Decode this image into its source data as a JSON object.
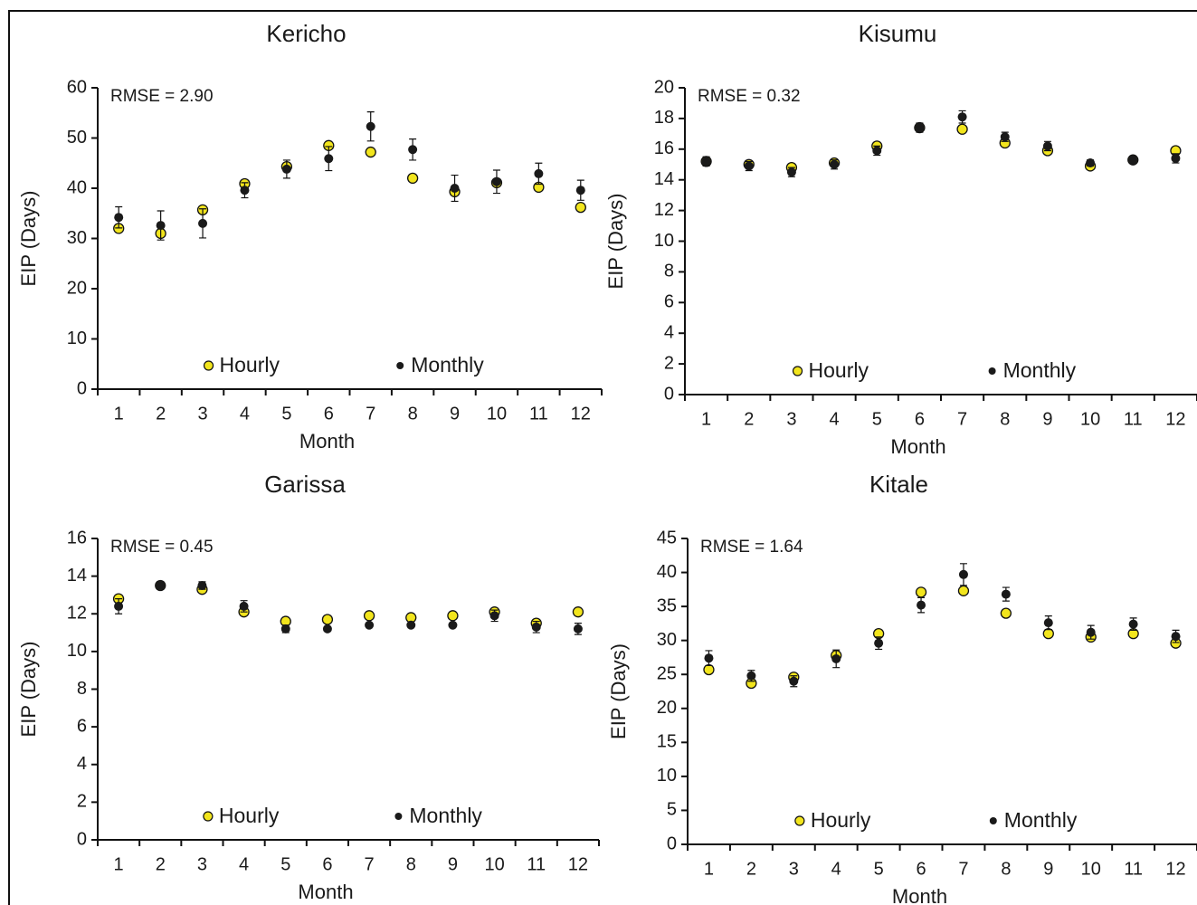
{
  "chart_data": [
    {
      "type": "scatter",
      "title": "Kericho",
      "annotation": "RMSE = 2.90",
      "xlabel": "Month",
      "ylabel": "EIP (Days)",
      "categories": [
        "1",
        "2",
        "3",
        "4",
        "5",
        "6",
        "7",
        "8",
        "9",
        "10",
        "11",
        "12"
      ],
      "series": [
        {
          "name": "Hourly",
          "color": "#f2e51d",
          "values": [
            32,
            31,
            35.7,
            40.9,
            44.3,
            48.5,
            47.2,
            42,
            39.3,
            41.1,
            40.2,
            36.2
          ]
        },
        {
          "name": "Monthly",
          "color": "#1a1a1a",
          "values": [
            34.2,
            32.6,
            33,
            39.6,
            43.8,
            45.9,
            52.3,
            47.7,
            40,
            41.3,
            42.9,
            39.6
          ],
          "errors": [
            2.1,
            2.9,
            2.9,
            1.5,
            1.8,
            2.4,
            2.9,
            2.1,
            2.6,
            2.3,
            2.1,
            2.0
          ]
        }
      ],
      "ylim": [
        0,
        60
      ],
      "yticks": [
        0,
        10,
        20,
        30,
        40,
        50,
        60
      ]
    },
    {
      "type": "scatter",
      "title": "Kisumu",
      "annotation": "RMSE = 0.32",
      "xlabel": "Month",
      "ylabel": "EIP (Days)",
      "categories": [
        "1",
        "2",
        "3",
        "4",
        "5",
        "6",
        "7",
        "8",
        "9",
        "10",
        "11",
        "12"
      ],
      "series": [
        {
          "name": "Hourly",
          "color": "#f2e51d",
          "values": [
            15.2,
            15,
            14.8,
            15.1,
            16.2,
            17.4,
            17.3,
            16.4,
            15.9,
            14.9,
            15.3,
            15.9
          ]
        },
        {
          "name": "Monthly",
          "color": "#1a1a1a",
          "values": [
            15.2,
            14.9,
            14.5,
            15,
            15.9,
            17.4,
            18.1,
            16.8,
            16.2,
            15.1,
            15.3,
            15.4
          ],
          "errors": [
            0.3,
            0.3,
            0.3,
            0.3,
            0.3,
            0.3,
            0.4,
            0.3,
            0.3,
            0.2,
            0.2,
            0.3
          ]
        }
      ],
      "ylim": [
        0,
        20
      ],
      "yticks": [
        0,
        2,
        4,
        6,
        8,
        10,
        12,
        14,
        16,
        18,
        20
      ]
    },
    {
      "type": "scatter",
      "title": "Garissa",
      "annotation": "RMSE = 0.45",
      "xlabel": "Month",
      "ylabel": "EIP (Days)",
      "categories": [
        "1",
        "2",
        "3",
        "4",
        "5",
        "6",
        "7",
        "8",
        "9",
        "10",
        "11",
        "12"
      ],
      "series": [
        {
          "name": "Hourly",
          "color": "#f2e51d",
          "values": [
            12.8,
            13.5,
            13.3,
            12.1,
            11.6,
            11.7,
            11.9,
            11.8,
            11.9,
            12.1,
            11.5,
            12.1
          ]
        },
        {
          "name": "Monthly",
          "color": "#1a1a1a",
          "values": [
            12.4,
            13.5,
            13.5,
            12.4,
            11.2,
            11.2,
            11.4,
            11.4,
            11.4,
            11.9,
            11.3,
            11.2
          ],
          "errors": [
            0.4,
            0.2,
            0.2,
            0.3,
            0.2,
            0.1,
            0.1,
            0.1,
            0.1,
            0.3,
            0.3,
            0.3
          ]
        }
      ],
      "ylim": [
        0,
        16
      ],
      "yticks": [
        0,
        2,
        4,
        6,
        8,
        10,
        12,
        14,
        16
      ]
    },
    {
      "type": "scatter",
      "title": "Kitale",
      "annotation": "RMSE = 1.64",
      "xlabel": "Month",
      "ylabel": "EIP (Days)",
      "categories": [
        "1",
        "2",
        "3",
        "4",
        "5",
        "6",
        "7",
        "8",
        "9",
        "10",
        "11",
        "12"
      ],
      "series": [
        {
          "name": "Hourly",
          "color": "#f2e51d",
          "values": [
            25.7,
            23.7,
            24.6,
            27.8,
            31,
            37.1,
            37.3,
            34,
            31,
            30.5,
            31,
            29.6
          ]
        },
        {
          "name": "Monthly",
          "color": "#1a1a1a",
          "values": [
            27.4,
            24.8,
            24,
            27.3,
            29.6,
            35.2,
            39.7,
            36.8,
            32.6,
            31.2,
            32.4,
            30.6
          ],
          "errors": [
            1.1,
            0.8,
            0.8,
            1.3,
            0.9,
            1.1,
            1.6,
            1.0,
            1.0,
            1.0,
            0.9,
            0.9
          ]
        }
      ],
      "ylim": [
        0,
        45
      ],
      "yticks": [
        0,
        5,
        10,
        15,
        20,
        25,
        30,
        35,
        40,
        45
      ]
    }
  ]
}
